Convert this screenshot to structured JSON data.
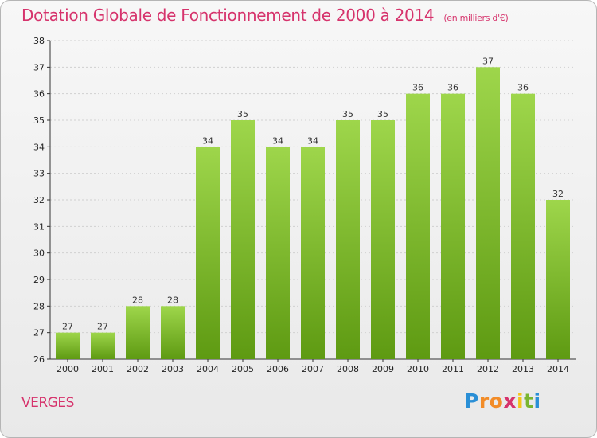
{
  "title": "Dotation Globale de Fonctionnement de 2000 à 2014",
  "unit_note": "(en milliers d'€)",
  "commune": "VERGES",
  "brand": {
    "letters": [
      "P",
      "r",
      "o",
      "x",
      "i",
      "t",
      "i"
    ],
    "colors": [
      "#2a8fd6",
      "#f28c28",
      "#f28c28",
      "#d6336c",
      "#f5c518",
      "#7ab530",
      "#2a8fd6"
    ]
  },
  "colors": {
    "accent": "#d6336c",
    "bar_top": "#9ed64b",
    "bar_bottom": "#5e9a12",
    "axis": "#333333",
    "grid": "#d0d0d0"
  },
  "chart_data": {
    "type": "bar",
    "title": "Dotation Globale de Fonctionnement de 2000 à 2014",
    "subtitle": "(en milliers d'€)",
    "categories": [
      "2000",
      "2001",
      "2002",
      "2003",
      "2004",
      "2005",
      "2006",
      "2007",
      "2008",
      "2009",
      "2010",
      "2011",
      "2012",
      "2013",
      "2014"
    ],
    "values": [
      27,
      27,
      28,
      28,
      34,
      35,
      34,
      34,
      35,
      35,
      36,
      36,
      37,
      36,
      32
    ],
    "xlabel": "",
    "ylabel": "",
    "ylim": [
      26,
      38
    ],
    "yticks": [
      26,
      27,
      28,
      29,
      30,
      31,
      32,
      33,
      34,
      35,
      36,
      37,
      38
    ],
    "grid": true,
    "legend": "none"
  }
}
